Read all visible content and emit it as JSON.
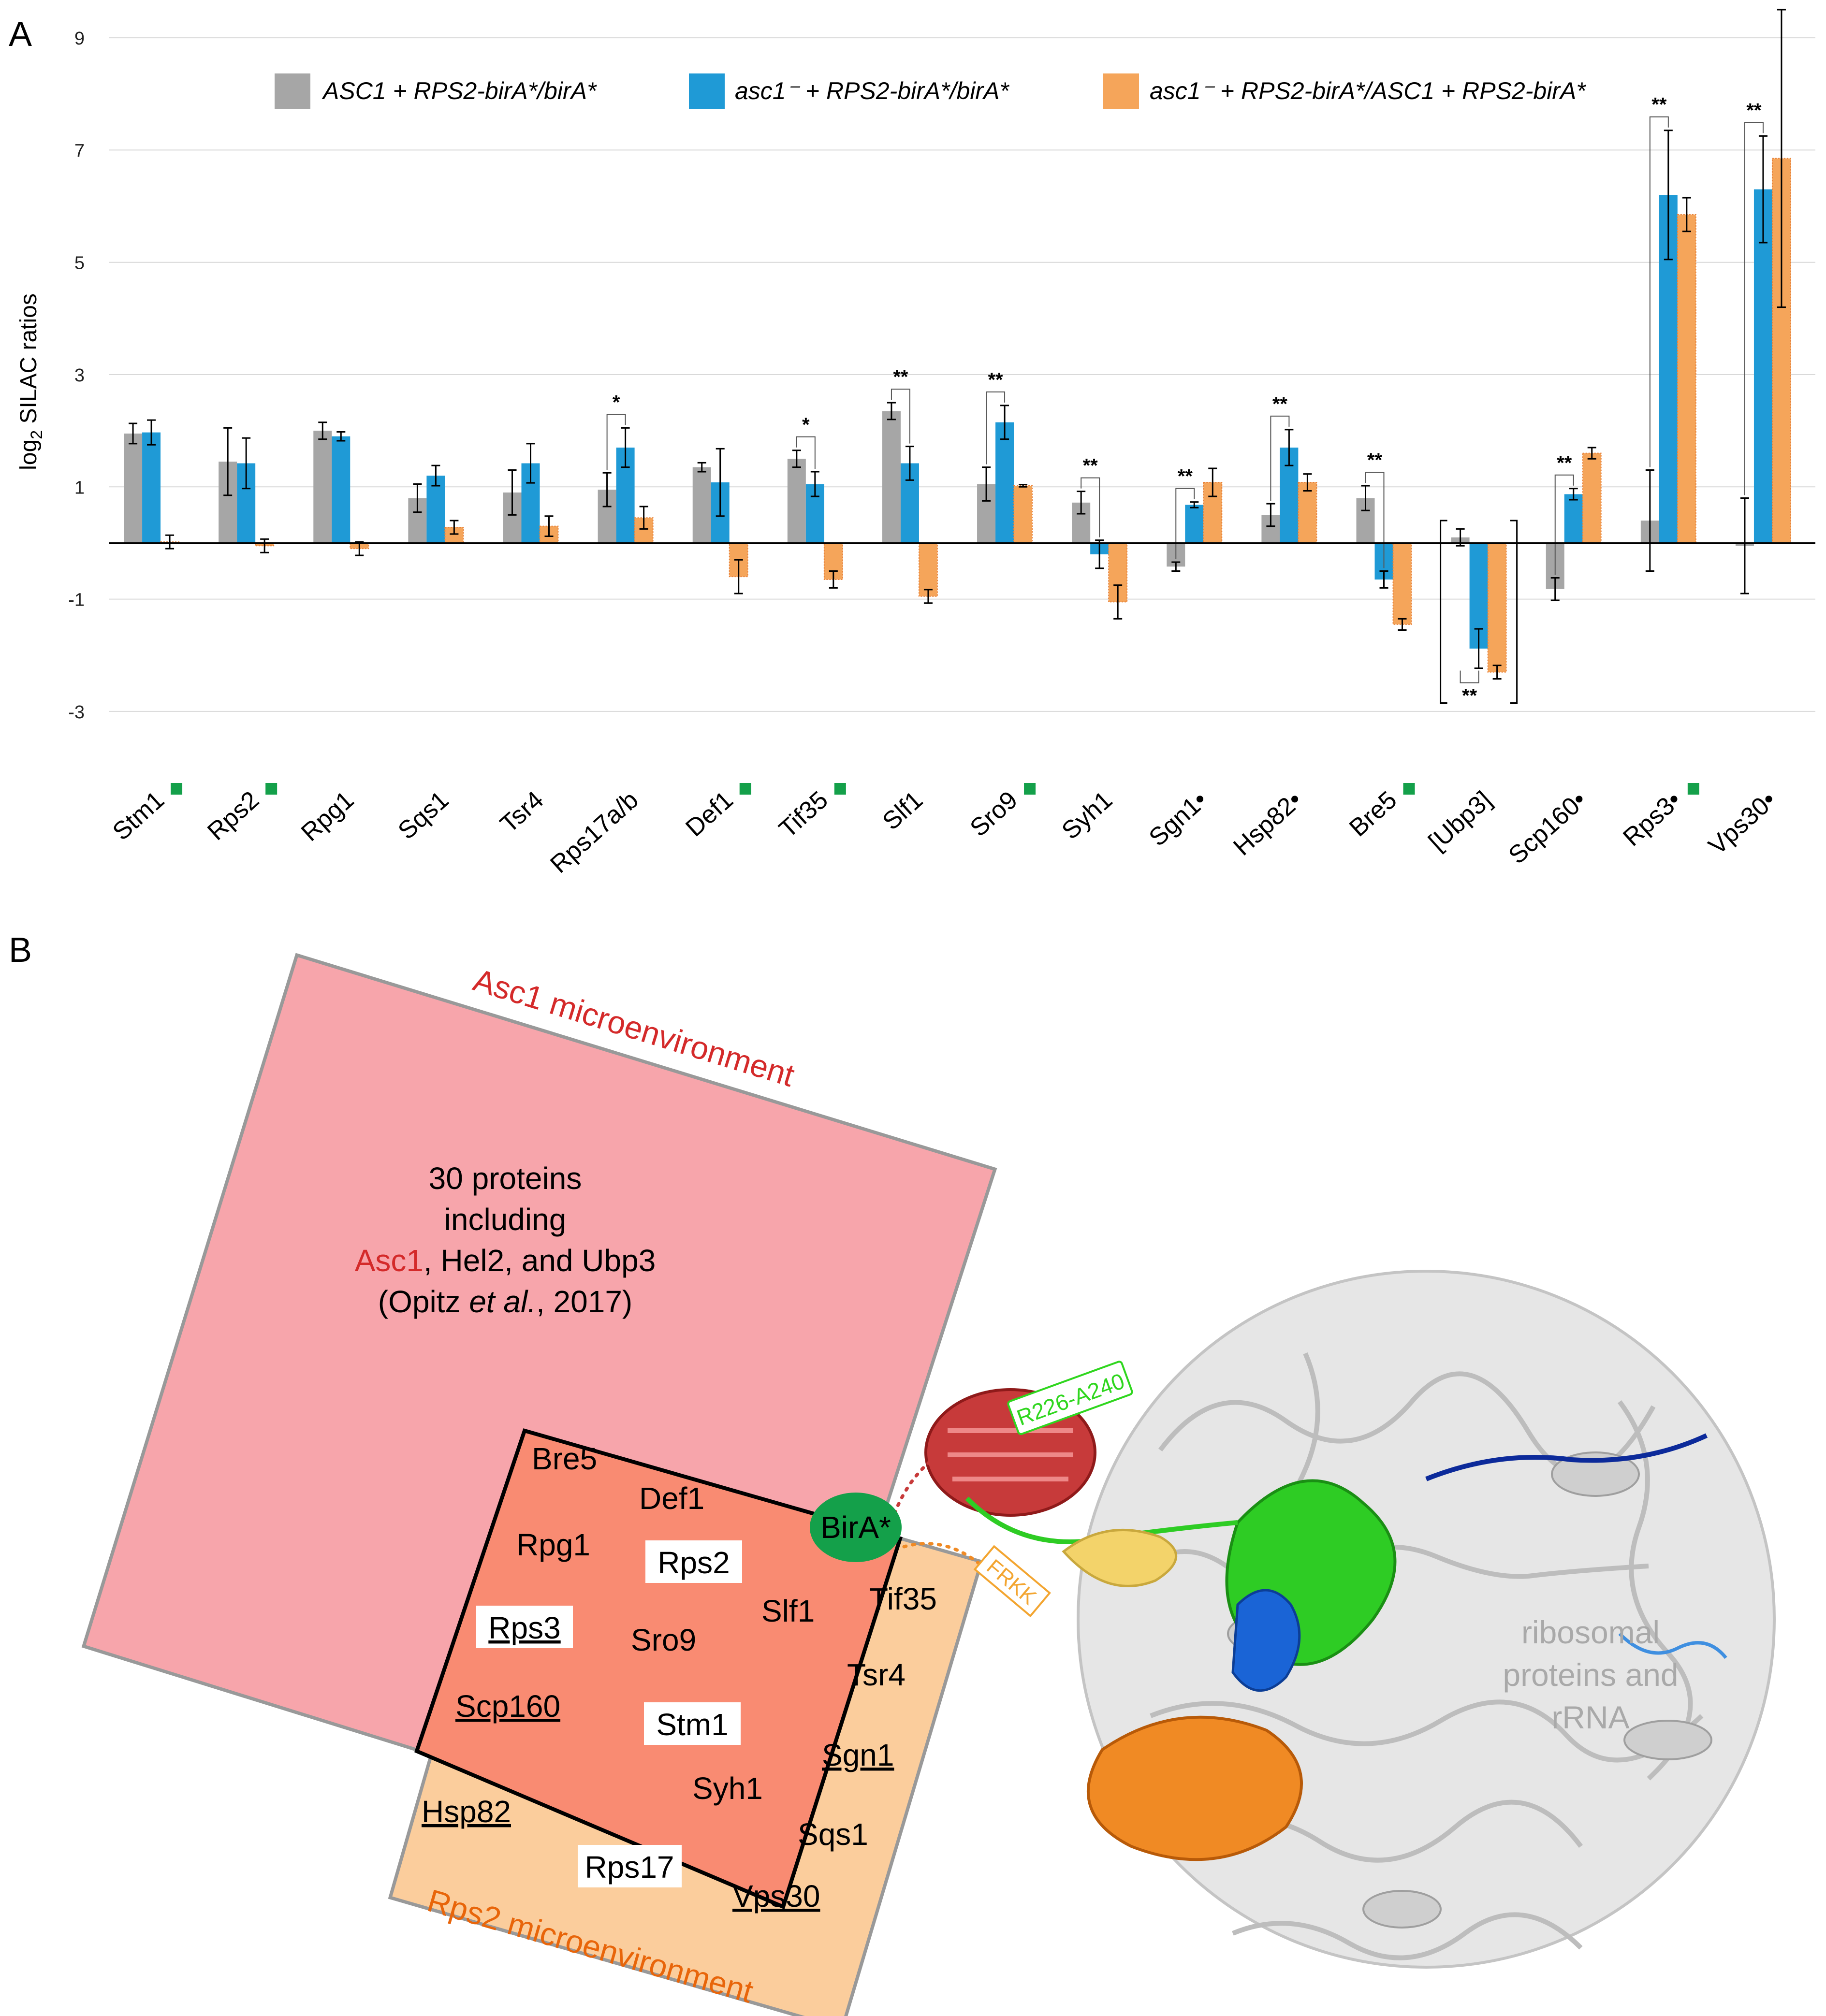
{
  "panel_a_label": "A",
  "panel_b_label": "B",
  "chart_data": {
    "type": "bar",
    "title": "",
    "xlabel": "",
    "ylabel": "log2 SILAC ratios",
    "ylabel_main": "log",
    "ylabel_sub": "2",
    "ylabel_rest": " SILAC ratios",
    "ylim": [
      -3.5,
      9
    ],
    "yticks": [
      -3,
      -1,
      1,
      3,
      5,
      7,
      9
    ],
    "grid": true,
    "legend_position": "top",
    "categories": [
      "Stm1",
      "Rps2",
      "Rpg1",
      "Sqs1",
      "Tsr4",
      "Rps17a/b",
      "Def1",
      "Tif35",
      "Slf1",
      "Sro9",
      "Syh1",
      "Sgn1•",
      "Hsp82•",
      "Bre5",
      "[Ubp3]",
      "Scp160•",
      "Rps3•",
      "Vps30•"
    ],
    "category_markers": [
      true,
      true,
      false,
      false,
      false,
      false,
      true,
      true,
      false,
      true,
      false,
      false,
      false,
      true,
      false,
      false,
      true,
      false
    ],
    "series": [
      {
        "name": "ASC1 + RPS2-birA*/birA*",
        "color": "#a6a6a6",
        "values": [
          1.95,
          1.45,
          2.0,
          0.8,
          0.9,
          0.95,
          1.35,
          1.5,
          2.35,
          1.05,
          0.72,
          -0.42,
          0.5,
          0.8,
          0.1,
          -0.82,
          0.4,
          -0.05
        ],
        "errors": [
          0.18,
          0.6,
          0.15,
          0.25,
          0.4,
          0.3,
          0.08,
          0.15,
          0.15,
          0.3,
          0.2,
          0.08,
          0.2,
          0.22,
          0.15,
          0.2,
          0.9,
          0.85
        ]
      },
      {
        "name": "asc1- + RPS2-birA*/birA*",
        "color": "#1f9ad6",
        "values": [
          1.97,
          1.42,
          1.9,
          1.2,
          1.42,
          1.7,
          1.08,
          1.05,
          1.42,
          2.15,
          -0.2,
          0.68,
          1.7,
          -0.65,
          -1.88,
          0.87,
          6.2,
          6.3
        ],
        "errors": [
          0.22,
          0.45,
          0.08,
          0.18,
          0.35,
          0.35,
          0.6,
          0.22,
          0.3,
          0.3,
          0.25,
          0.05,
          0.32,
          0.15,
          0.35,
          0.1,
          1.15,
          0.95
        ]
      },
      {
        "name": "asc1- + RPS2-birA*/ASC1 + RPS2-birA*",
        "color": "#f5a55a",
        "values": [
          0.02,
          -0.05,
          -0.1,
          0.28,
          0.3,
          0.45,
          -0.6,
          -0.65,
          -0.95,
          1.02,
          -1.05,
          1.08,
          1.08,
          -1.45,
          -2.3,
          1.6,
          5.85,
          6.85
        ],
        "errors": [
          0.12,
          0.12,
          0.12,
          0.12,
          0.18,
          0.2,
          0.3,
          0.15,
          0.12,
          0.02,
          0.3,
          0.25,
          0.15,
          0.1,
          0.12,
          0.1,
          0.3,
          2.65
        ]
      }
    ],
    "significance": [
      {
        "category": "Rps17a/b",
        "label": "*"
      },
      {
        "category": "Tif35",
        "label": "*"
      },
      {
        "category": "Slf1",
        "label": "**"
      },
      {
        "category": "Sro9",
        "label": "**"
      },
      {
        "category": "Syh1",
        "label": "**"
      },
      {
        "category": "Sgn1•",
        "label": "**"
      },
      {
        "category": "Hsp82•",
        "label": "**"
      },
      {
        "category": "Bre5",
        "label": "**"
      },
      {
        "category": "[Ubp3]",
        "label": "**"
      },
      {
        "category": "Scp160•",
        "label": "**"
      },
      {
        "category": "Rps3•",
        "label": "**"
      },
      {
        "category": "Vps30•",
        "label": "**"
      }
    ]
  },
  "legend_labels": {
    "s1": "ASC1 + RPS2-birA*/birA*",
    "s2": "asc1⁻ + RPS2-birA*/birA*",
    "s3": "asc1⁻ + RPS2-birA*/ASC1 + RPS2-birA*"
  },
  "panel_b": {
    "asc1_title": "Asc1 microenvironment",
    "rps2_title": "Rps2 microenvironment",
    "asc1_text": {
      "line1": "30 proteins",
      "line2": "including",
      "line3_asc1": "Asc1",
      "line3_rest": ", Hel2, and Ubp3",
      "line4_open": "(Opitz ",
      "line4_etal": "et al.",
      "line4_close": ", 2017)"
    },
    "overlap_proteins": [
      "Bre5",
      "Def1",
      "Rpg1",
      "Rps2",
      "Slf1",
      "Rps3",
      "Sro9",
      "Scp160",
      "Stm1",
      "Syh1"
    ],
    "rps2_only_proteins": [
      "Tif35",
      "Tsr4",
      "Sgn1",
      "Sqs1",
      "Hsp82",
      "Rps17",
      "Vps30"
    ],
    "bira_label": "BirA*",
    "region_label": "R226-A240",
    "motif_label": "FRKK",
    "ribosome_label": [
      "ribosomal",
      "proteins and",
      "rRNA"
    ],
    "colors": {
      "asc1_box": "#f7a5ab",
      "overlap": "#f98b72",
      "rps2_box": "#fbcd9c",
      "bira": "#14a04a",
      "asc1_red": "#d42a2a",
      "rps2_orange": "#e8650a",
      "rps2_yellow": "#f3c35a",
      "rps3_green": "#2fd61e",
      "stm1_blue": "#0a1fa8",
      "ribosome_gray": "#a9a9a9"
    }
  }
}
